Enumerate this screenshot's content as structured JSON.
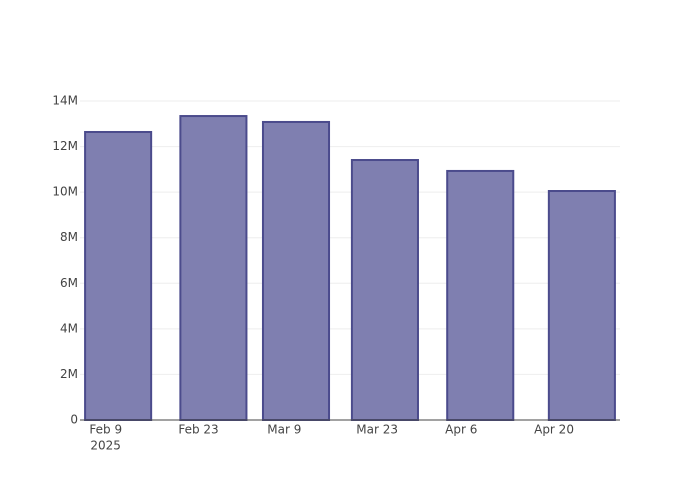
{
  "chart_data": {
    "type": "bar",
    "x": [
      "2025-02-11",
      "2025-02-26",
      "2025-03-11",
      "2025-03-25",
      "2025-04-09",
      "2025-04-25"
    ],
    "values": [
      12640000,
      13340000,
      13080000,
      11410000,
      10930000,
      10050000
    ],
    "color": "#7f7fb0",
    "edge_color": "#4b4b8c",
    "xlim": [
      "2025-02-05",
      "2025-05-01"
    ],
    "xticks": [
      {
        "value": "2025-02-09",
        "label": "Feb 9"
      },
      {
        "value": "2025-02-23",
        "label": "Feb 23"
      },
      {
        "value": "2025-03-09",
        "label": "Mar 9"
      },
      {
        "value": "2025-03-23",
        "label": "Mar 23"
      },
      {
        "value": "2025-04-06",
        "label": "Apr 6"
      },
      {
        "value": "2025-04-20",
        "label": "Apr 20"
      }
    ],
    "xtick_year": "2025",
    "ylim": [
      0,
      14000000
    ],
    "yticks": [
      0,
      {
        "value": 2000000,
        "label": "2M"
      },
      {
        "value": 4000000,
        "label": "4M"
      },
      {
        "value": 6000000,
        "label": "6M"
      },
      {
        "value": 8000000,
        "label": "8M"
      },
      {
        "value": 10000000,
        "label": "10M"
      },
      {
        "value": 12000000,
        "label": "12M"
      },
      {
        "value": 14000000,
        "label": "14M"
      }
    ],
    "grid": true
  }
}
